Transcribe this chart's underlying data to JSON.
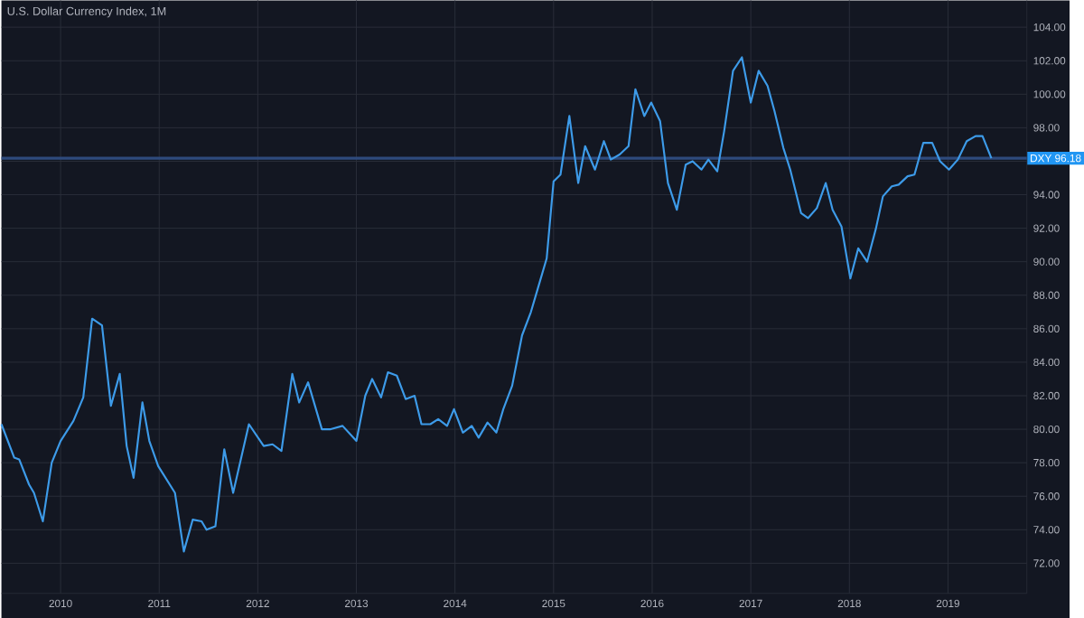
{
  "chart_data": {
    "type": "line",
    "title": "U.S. Dollar Currency Index, 1M",
    "x": [
      2009.4,
      2009.53,
      2009.58,
      2009.68,
      2009.73,
      2009.82,
      2009.91,
      2010.0,
      2010.13,
      2010.23,
      2010.32,
      2010.42,
      2010.51,
      2010.6,
      2010.67,
      2010.74,
      2010.83,
      2010.9,
      2010.99,
      2011.16,
      2011.25,
      2011.34,
      2011.43,
      2011.48,
      2011.57,
      2011.66,
      2011.75,
      2011.91,
      2012.06,
      2012.15,
      2012.24,
      2012.35,
      2012.42,
      2012.51,
      2012.65,
      2012.74,
      2012.86,
      2013.0,
      2013.09,
      2013.16,
      2013.25,
      2013.32,
      2013.41,
      2013.5,
      2013.59,
      2013.66,
      2013.75,
      2013.83,
      2013.92,
      2013.99,
      2014.08,
      2014.17,
      2014.24,
      2014.33,
      2014.42,
      2014.49,
      2014.58,
      2014.68,
      2014.77,
      2014.84,
      2014.93,
      2015.0,
      2015.07,
      2015.16,
      2015.25,
      2015.32,
      2015.42,
      2015.51,
      2015.58,
      2015.67,
      2015.76,
      2015.83,
      2015.92,
      2015.99,
      2016.08,
      2016.16,
      2016.25,
      2016.34,
      2016.41,
      2016.5,
      2016.57,
      2016.66,
      2016.73,
      2016.82,
      2016.91,
      2017.0,
      2017.08,
      2017.17,
      2017.24,
      2017.33,
      2017.4,
      2017.51,
      2017.58,
      2017.67,
      2017.76,
      2017.83,
      2017.92,
      2018.01,
      2018.09,
      2018.18,
      2018.27,
      2018.34,
      2018.43,
      2018.5,
      2018.59,
      2018.66,
      2018.75,
      2018.84,
      2018.92,
      2019.01,
      2019.1,
      2019.19,
      2019.28,
      2019.35,
      2019.44
    ],
    "series": [
      {
        "color": "#3d9be9",
        "values": [
          80.3,
          78.3,
          78.2,
          76.7,
          76.2,
          74.5,
          78.0,
          79.3,
          80.5,
          81.9,
          86.6,
          86.2,
          81.4,
          83.3,
          79.0,
          77.1,
          81.6,
          79.3,
          77.8,
          76.2,
          72.7,
          74.6,
          74.5,
          74.0,
          74.2,
          78.8,
          76.2,
          80.3,
          79.0,
          79.1,
          78.7,
          83.3,
          81.6,
          82.8,
          80.0,
          80.0,
          80.2,
          79.3,
          82.0,
          83.0,
          81.9,
          83.4,
          83.2,
          81.8,
          82.0,
          80.3,
          80.3,
          80.6,
          80.2,
          81.2,
          79.8,
          80.2,
          79.5,
          80.4,
          79.8,
          81.2,
          82.6,
          85.6,
          87.0,
          88.4,
          90.2,
          94.8,
          95.2,
          98.7,
          94.7,
          96.9,
          95.5,
          97.2,
          96.1,
          96.4,
          96.9,
          100.3,
          98.7,
          99.5,
          98.4,
          94.7,
          93.1,
          95.8,
          96.0,
          95.5,
          96.1,
          95.4,
          97.8,
          101.4,
          102.2,
          99.5,
          101.4,
          100.5,
          99.0,
          96.8,
          95.5,
          92.9,
          92.6,
          93.2,
          94.7,
          93.1,
          92.1,
          89.0,
          90.8,
          90.0,
          92.0,
          93.9,
          94.5,
          94.6,
          95.1,
          95.2,
          97.1,
          97.1,
          96.0,
          95.5,
          96.1,
          97.2,
          97.5,
          97.5,
          96.18
        ]
      }
    ],
    "xlim": [
      2009.4,
      2019.8
    ],
    "xticks": [
      2010,
      2011,
      2012,
      2013,
      2014,
      2015,
      2016,
      2017,
      2018,
      2019
    ],
    "ylim": [
      70.2,
      105.6
    ],
    "yticks": [
      {
        "value": 72,
        "label": "72.00"
      },
      {
        "value": 74,
        "label": "74.00"
      },
      {
        "value": 76,
        "label": "76.00"
      },
      {
        "value": 78,
        "label": "78.00"
      },
      {
        "value": 80,
        "label": "80.00"
      },
      {
        "value": 82,
        "label": "82.00"
      },
      {
        "value": 84,
        "label": "84.00"
      },
      {
        "value": 86,
        "label": "86.00"
      },
      {
        "value": 88,
        "label": "88.00"
      },
      {
        "value": 90,
        "label": "90.00"
      },
      {
        "value": 92,
        "label": "92.00"
      },
      {
        "value": 94,
        "label": "94.00"
      },
      {
        "value": 96,
        "label": null
      },
      {
        "value": 98,
        "label": "98.00"
      },
      {
        "value": 100,
        "label": "100.00"
      },
      {
        "value": 102,
        "label": "102.00"
      },
      {
        "value": 104,
        "label": "104.00"
      }
    ],
    "ref_lines": [
      {
        "axis": "y",
        "value": 96.18,
        "label": "DXY 96.18",
        "color": "#2e4a7d"
      }
    ],
    "grid": true,
    "line_style": "solid"
  }
}
